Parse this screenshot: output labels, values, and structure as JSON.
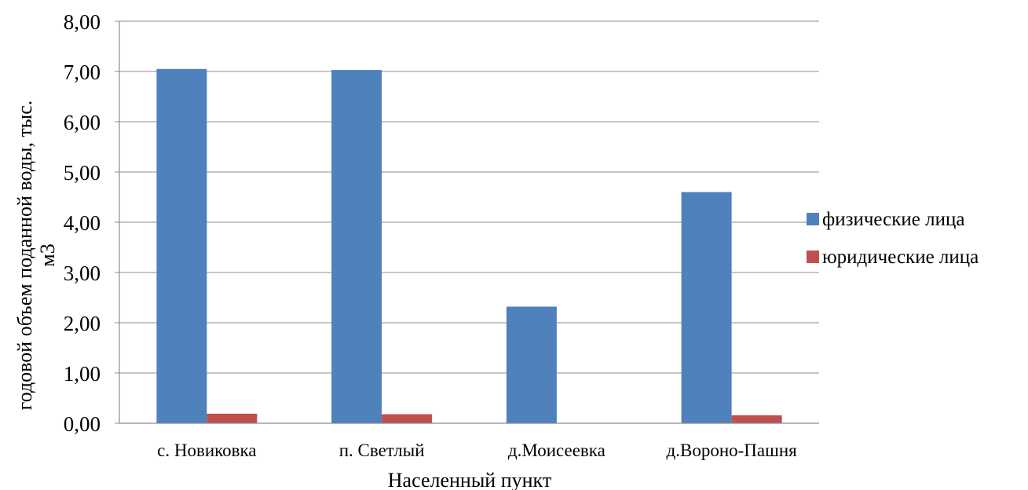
{
  "chart_data": {
    "type": "bar",
    "categories": [
      "с. Новиковка",
      "п. Светлый",
      "д.Моисеевка",
      "д.Вороно-Пашня"
    ],
    "series": [
      {
        "name": "физические лица",
        "color": "#4F81BD",
        "values": [
          7.05,
          7.03,
          2.32,
          4.6
        ]
      },
      {
        "name": "юридические лица",
        "color": "#C0504D",
        "values": [
          0.19,
          0.18,
          0.0,
          0.16
        ]
      }
    ],
    "xlabel": "Населенный пункт",
    "ylabel": "годовой объем поданной воды, тыс. м3",
    "ylim": [
      0,
      8
    ],
    "yticks": [
      "0,00",
      "1,00",
      "2,00",
      "3,00",
      "4,00",
      "5,00",
      "6,00",
      "7,00",
      "8,00"
    ],
    "grid": true,
    "legend_position": "right"
  }
}
